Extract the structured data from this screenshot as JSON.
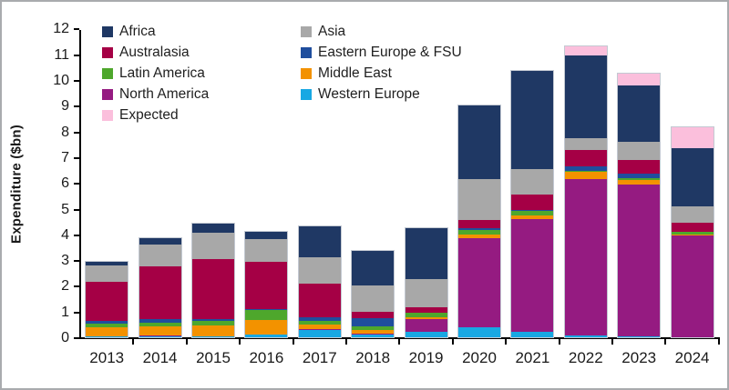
{
  "chart_data": {
    "type": "bar",
    "stacked": true,
    "title": "",
    "xlabel": "",
    "ylabel": "Expenditure ($bn)",
    "ylim": [
      0,
      12
    ],
    "yticks": [
      0,
      1,
      2,
      3,
      4,
      5,
      6,
      7,
      8,
      9,
      10,
      11,
      12
    ],
    "grid": false,
    "legend_position": "top-left",
    "categories": [
      "2013",
      "2014",
      "2015",
      "2016",
      "2017",
      "2018",
      "2019",
      "2020",
      "2021",
      "2022",
      "2023",
      "2024"
    ],
    "stack_order_note": "series listed bottom-to-top of each stacked bar",
    "series": [
      {
        "name": "Western Europe",
        "color": "#18a8e3",
        "values": [
          0.02,
          0.03,
          0.02,
          0.1,
          0.28,
          0.1,
          0.2,
          0.4,
          0.2,
          0.08,
          0.02,
          0.0
        ]
      },
      {
        "name": "North America",
        "color": "#951b81",
        "values": [
          0.03,
          0.03,
          0.03,
          0.02,
          0.05,
          0.03,
          0.5,
          3.45,
          4.4,
          6.05,
          5.93,
          3.95
        ]
      },
      {
        "name": "Middle East",
        "color": "#f39200",
        "values": [
          0.33,
          0.37,
          0.42,
          0.55,
          0.15,
          0.15,
          0.07,
          0.15,
          0.15,
          0.3,
          0.15,
          0.03
        ]
      },
      {
        "name": "Latin America",
        "color": "#4ea72c",
        "values": [
          0.15,
          0.15,
          0.18,
          0.38,
          0.15,
          0.15,
          0.18,
          0.18,
          0.15,
          0.05,
          0.1,
          0.1
        ]
      },
      {
        "name": "Eastern Europe & FSU",
        "color": "#1f4e9d",
        "values": [
          0.1,
          0.12,
          0.05,
          0.05,
          0.14,
          0.3,
          0.02,
          0.05,
          0.05,
          0.17,
          0.15,
          0.02
        ]
      },
      {
        "name": "Australasia",
        "color": "#a50045",
        "values": [
          1.52,
          2.05,
          2.35,
          1.85,
          1.33,
          0.27,
          0.2,
          0.32,
          0.6,
          0.62,
          0.55,
          0.35
        ]
      },
      {
        "name": "Asia",
        "color": "#a8a8a8",
        "values": [
          0.65,
          0.85,
          1.0,
          0.85,
          1.0,
          1.0,
          1.08,
          1.6,
          1.0,
          0.48,
          0.7,
          0.65
        ]
      },
      {
        "name": "Africa",
        "color": "#1f3864",
        "values": [
          0.15,
          0.25,
          0.35,
          0.3,
          1.2,
          1.35,
          2.0,
          2.85,
          3.8,
          3.2,
          2.2,
          2.25
        ]
      },
      {
        "name": "Expected",
        "color": "#fbbfdc",
        "values": [
          0.0,
          0.0,
          0.0,
          0.0,
          0.0,
          0.0,
          0.0,
          0.0,
          0.0,
          0.35,
          0.45,
          0.8
        ]
      }
    ],
    "legend_columns": [
      [
        "Africa",
        "Australasia",
        "Latin America",
        "North America",
        "Expected"
      ],
      [
        "Asia",
        "Eastern Europe & FSU",
        "Middle East",
        "Western Europe"
      ]
    ]
  }
}
